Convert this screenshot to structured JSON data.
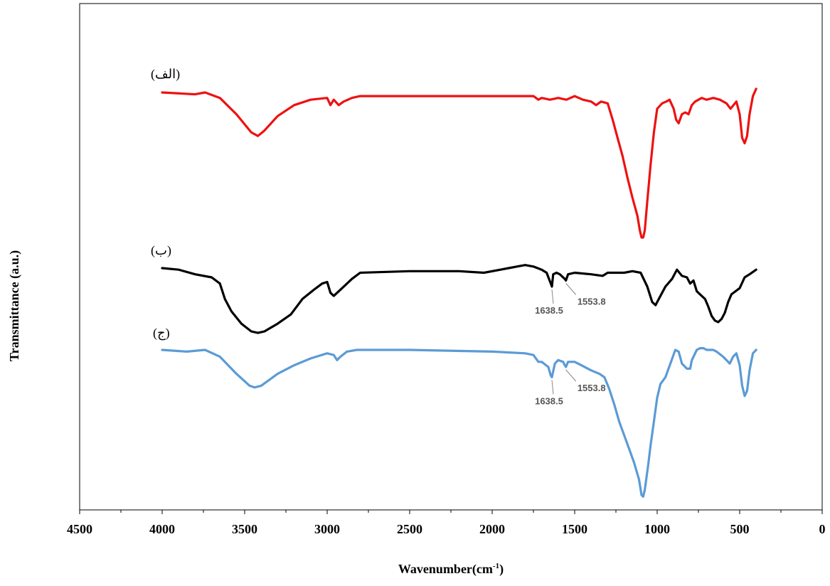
{
  "chart_data": {
    "type": "line",
    "title": "",
    "xlabel": "Wavenumber(cm",
    "xlabel_superscript": "-1",
    "xlabel_close": ")",
    "ylabel": "Transmittance  (a.u.)",
    "xlim": [
      4500,
      0
    ],
    "x_reversed": true,
    "x_ticks": [
      4500,
      4000,
      3500,
      3000,
      2500,
      2000,
      1500,
      1000,
      500,
      0
    ],
    "y_ticks": [],
    "grid": false,
    "legend": "none",
    "colors": {
      "series_1": "#ee1111",
      "series_2": "#000000",
      "series_3": "#5b9bd5",
      "annotation": "#888888",
      "axis": "#000000"
    },
    "series": [
      {
        "label": "(الف)",
        "points": [
          [
            4000,
            100
          ],
          [
            3800,
            99
          ],
          [
            3740,
            100
          ],
          [
            3650,
            97
          ],
          [
            3550,
            88
          ],
          [
            3460,
            78
          ],
          [
            3420,
            76
          ],
          [
            3380,
            79
          ],
          [
            3300,
            87
          ],
          [
            3200,
            93
          ],
          [
            3100,
            96
          ],
          [
            3000,
            97
          ],
          [
            2980,
            93
          ],
          [
            2960,
            96
          ],
          [
            2930,
            93
          ],
          [
            2900,
            95
          ],
          [
            2850,
            97
          ],
          [
            2800,
            98
          ],
          [
            2500,
            98
          ],
          [
            2000,
            98
          ],
          [
            1750,
            98
          ],
          [
            1720,
            96
          ],
          [
            1700,
            97
          ],
          [
            1650,
            96
          ],
          [
            1600,
            97
          ],
          [
            1550,
            96
          ],
          [
            1500,
            98
          ],
          [
            1450,
            96
          ],
          [
            1400,
            95
          ],
          [
            1370,
            93
          ],
          [
            1340,
            95
          ],
          [
            1300,
            94
          ],
          [
            1270,
            85
          ],
          [
            1240,
            75
          ],
          [
            1210,
            65
          ],
          [
            1180,
            53
          ],
          [
            1150,
            42
          ],
          [
            1120,
            32
          ],
          [
            1105,
            24
          ],
          [
            1095,
            20
          ],
          [
            1085,
            20
          ],
          [
            1075,
            24
          ],
          [
            1060,
            40
          ],
          [
            1040,
            60
          ],
          [
            1020,
            78
          ],
          [
            1000,
            91
          ],
          [
            970,
            94
          ],
          [
            945,
            95
          ],
          [
            925,
            96
          ],
          [
            900,
            91
          ],
          [
            885,
            85
          ],
          [
            870,
            83
          ],
          [
            850,
            88
          ],
          [
            830,
            89
          ],
          [
            810,
            88
          ],
          [
            790,
            93
          ],
          [
            770,
            95
          ],
          [
            730,
            97
          ],
          [
            700,
            96
          ],
          [
            660,
            97
          ],
          [
            620,
            96
          ],
          [
            580,
            94
          ],
          [
            555,
            91
          ],
          [
            520,
            95
          ],
          [
            500,
            88
          ],
          [
            485,
            75
          ],
          [
            470,
            72
          ],
          [
            455,
            76
          ],
          [
            440,
            88
          ],
          [
            420,
            98
          ],
          [
            400,
            102
          ]
        ]
      },
      {
        "label": "(ب)",
        "points": [
          [
            4000,
            100
          ],
          [
            3900,
            99
          ],
          [
            3800,
            96
          ],
          [
            3700,
            94
          ],
          [
            3650,
            90
          ],
          [
            3620,
            80
          ],
          [
            3580,
            72
          ],
          [
            3520,
            64
          ],
          [
            3460,
            59
          ],
          [
            3420,
            58
          ],
          [
            3380,
            59
          ],
          [
            3300,
            64
          ],
          [
            3220,
            70
          ],
          [
            3150,
            80
          ],
          [
            3080,
            86
          ],
          [
            3030,
            90
          ],
          [
            3000,
            91
          ],
          [
            2980,
            84
          ],
          [
            2960,
            82
          ],
          [
            2920,
            86
          ],
          [
            2850,
            93
          ],
          [
            2800,
            97
          ],
          [
            2500,
            98
          ],
          [
            2200,
            98
          ],
          [
            2050,
            97
          ],
          [
            1950,
            99
          ],
          [
            1900,
            100
          ],
          [
            1850,
            101
          ],
          [
            1800,
            102
          ],
          [
            1750,
            101
          ],
          [
            1700,
            99
          ],
          [
            1670,
            97
          ],
          [
            1645,
            90
          ],
          [
            1638,
            88
          ],
          [
            1630,
            96
          ],
          [
            1610,
            97
          ],
          [
            1590,
            96
          ],
          [
            1560,
            93
          ],
          [
            1553,
            92
          ],
          [
            1540,
            96
          ],
          [
            1500,
            97
          ],
          [
            1400,
            96
          ],
          [
            1330,
            95
          ],
          [
            1300,
            97
          ],
          [
            1200,
            97
          ],
          [
            1150,
            98
          ],
          [
            1100,
            97
          ],
          [
            1060,
            88
          ],
          [
            1030,
            78
          ],
          [
            1010,
            76
          ],
          [
            990,
            80
          ],
          [
            950,
            88
          ],
          [
            910,
            93
          ],
          [
            880,
            99
          ],
          [
            850,
            95
          ],
          [
            820,
            94
          ],
          [
            800,
            90
          ],
          [
            780,
            92
          ],
          [
            760,
            85
          ],
          [
            740,
            83
          ],
          [
            710,
            80
          ],
          [
            690,
            75
          ],
          [
            670,
            69
          ],
          [
            650,
            66
          ],
          [
            630,
            65
          ],
          [
            610,
            67
          ],
          [
            590,
            71
          ],
          [
            570,
            78
          ],
          [
            550,
            83
          ],
          [
            500,
            87
          ],
          [
            470,
            94
          ],
          [
            440,
            96
          ],
          [
            400,
            99
          ]
        ]
      },
      {
        "label": "(ج)",
        "points": [
          [
            4000,
            100
          ],
          [
            3850,
            99
          ],
          [
            3740,
            100
          ],
          [
            3650,
            96
          ],
          [
            3550,
            86
          ],
          [
            3470,
            79
          ],
          [
            3440,
            78
          ],
          [
            3400,
            79
          ],
          [
            3300,
            86
          ],
          [
            3200,
            91
          ],
          [
            3100,
            95
          ],
          [
            3000,
            98
          ],
          [
            2960,
            97
          ],
          [
            2940,
            94
          ],
          [
            2920,
            96
          ],
          [
            2880,
            99
          ],
          [
            2820,
            100
          ],
          [
            2500,
            100
          ],
          [
            2000,
            99
          ],
          [
            1800,
            98
          ],
          [
            1750,
            97
          ],
          [
            1720,
            93
          ],
          [
            1700,
            93
          ],
          [
            1660,
            90
          ],
          [
            1645,
            85
          ],
          [
            1638,
            84
          ],
          [
            1620,
            92
          ],
          [
            1600,
            94
          ],
          [
            1570,
            93
          ],
          [
            1560,
            91
          ],
          [
            1553,
            90
          ],
          [
            1540,
            93
          ],
          [
            1500,
            93
          ],
          [
            1460,
            91
          ],
          [
            1400,
            88
          ],
          [
            1350,
            86
          ],
          [
            1320,
            84
          ],
          [
            1290,
            77
          ],
          [
            1260,
            68
          ],
          [
            1230,
            58
          ],
          [
            1200,
            50
          ],
          [
            1170,
            42
          ],
          [
            1140,
            34
          ],
          [
            1110,
            24
          ],
          [
            1095,
            15
          ],
          [
            1085,
            14
          ],
          [
            1075,
            18
          ],
          [
            1055,
            32
          ],
          [
            1040,
            44
          ],
          [
            1020,
            58
          ],
          [
            1000,
            72
          ],
          [
            980,
            80
          ],
          [
            950,
            84
          ],
          [
            920,
            92
          ],
          [
            890,
            100
          ],
          [
            870,
            99
          ],
          [
            850,
            92
          ],
          [
            820,
            89
          ],
          [
            800,
            89
          ],
          [
            790,
            94
          ],
          [
            760,
            100
          ],
          [
            740,
            101
          ],
          [
            720,
            101
          ],
          [
            700,
            100
          ],
          [
            660,
            100
          ],
          [
            640,
            99
          ],
          [
            600,
            96
          ],
          [
            560,
            92
          ],
          [
            540,
            96
          ],
          [
            520,
            98
          ],
          [
            500,
            91
          ],
          [
            485,
            79
          ],
          [
            470,
            73
          ],
          [
            455,
            76
          ],
          [
            440,
            88
          ],
          [
            420,
            98
          ],
          [
            400,
            100
          ]
        ]
      }
    ],
    "annotations": [
      {
        "text": "1638.5",
        "series": 1,
        "at_x": 1638
      },
      {
        "text": "1553.8",
        "series": 1,
        "at_x": 1553
      },
      {
        "text": "1638.5",
        "series": 2,
        "at_x": 1638
      },
      {
        "text": "1553.8",
        "series": 2,
        "at_x": 1553
      }
    ]
  }
}
